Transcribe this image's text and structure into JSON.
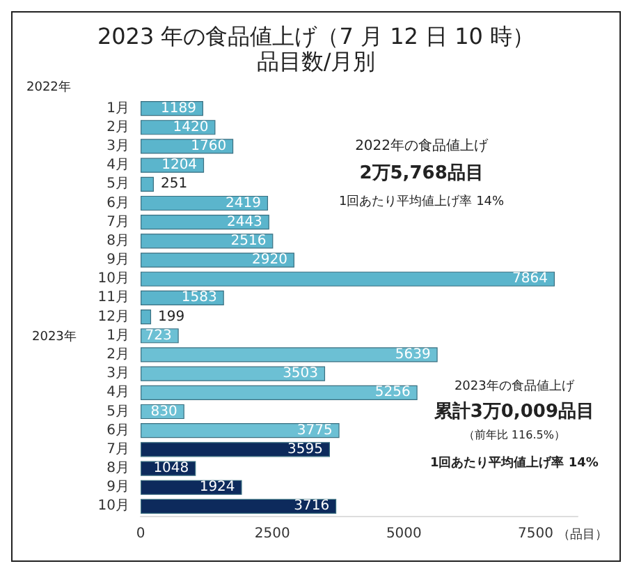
{
  "chart_data": {
    "type": "bar",
    "orientation": "horizontal",
    "title": "2023 年の食品値上げ（7 月 12 日 10 時）",
    "subtitle": "品目数/月別",
    "xlabel": "（品目）",
    "categories": [
      "1月",
      "2月",
      "3月",
      "4月",
      "5月",
      "6月",
      "7月",
      "8月",
      "9月",
      "10月",
      "11月",
      "12月",
      "1月",
      "2月",
      "3月",
      "4月",
      "5月",
      "6月",
      "7月",
      "8月",
      "9月",
      "10月"
    ],
    "values": [
      1189,
      1420,
      1760,
      1204,
      251,
      2419,
      2443,
      2516,
      2920,
      7864,
      1583,
      199,
      723,
      5639,
      3503,
      5256,
      830,
      3775,
      3595,
      1048,
      1924,
      3716
    ],
    "colors": [
      "#5bb5cc",
      "#5bb5cc",
      "#5bb5cc",
      "#5bb5cc",
      "#5bb5cc",
      "#5bb5cc",
      "#5bb5cc",
      "#5bb5cc",
      "#5bb5cc",
      "#5bb5cc",
      "#5bb5cc",
      "#5bb5cc",
      "#6cc0d4",
      "#6cc0d4",
      "#6cc0d4",
      "#6cc0d4",
      "#6cc0d4",
      "#6cc0d4",
      "#0d2a5c",
      "#0d2a5c",
      "#0d2a5c",
      "#0d2a5c"
    ],
    "xlim": [
      0,
      8300
    ],
    "xticks": [
      0,
      2500,
      5000,
      7500
    ],
    "data_labels": true,
    "grid": false,
    "annotations": [
      "2022年",
      "2023年",
      "2022年の食品値上げ",
      "2万5,768品目",
      "1回あたり平均値上げ率 14%",
      "2023年の食品値上げ",
      "累計3万0,009品目",
      "（前年比 116.5%）",
      "1回あたり平均値上げ率 14%"
    ]
  }
}
